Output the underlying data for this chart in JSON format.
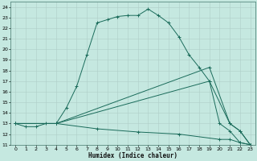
{
  "xlabel": "Humidex (Indice chaleur)",
  "xlim": [
    -0.5,
    23.5
  ],
  "ylim": [
    11,
    24.5
  ],
  "yticks": [
    11,
    12,
    13,
    14,
    15,
    16,
    17,
    18,
    19,
    20,
    21,
    22,
    23,
    24
  ],
  "xticks": [
    0,
    1,
    2,
    3,
    4,
    5,
    6,
    7,
    8,
    9,
    10,
    11,
    12,
    13,
    14,
    15,
    16,
    17,
    18,
    19,
    20,
    21,
    22,
    23
  ],
  "bg_color": "#c5e8e0",
  "line_color": "#1a6b5a",
  "grid_color": "#aecec8",
  "lines": [
    {
      "x": [
        0,
        1,
        2,
        3,
        4,
        5,
        6,
        7,
        8,
        9,
        10,
        11,
        12,
        13,
        14,
        15,
        16,
        17,
        18,
        19,
        20,
        21,
        22,
        23
      ],
      "y": [
        13.0,
        12.7,
        12.7,
        13.0,
        13.0,
        14.5,
        16.5,
        19.5,
        22.5,
        22.8,
        23.1,
        23.2,
        23.2,
        23.8,
        23.2,
        22.5,
        21.2,
        19.5,
        18.3,
        17.0,
        13.0,
        12.3,
        11.2,
        11.0
      ]
    },
    {
      "x": [
        0,
        4,
        19,
        21,
        22,
        23
      ],
      "y": [
        13.0,
        13.0,
        18.3,
        13.0,
        12.3,
        11.0
      ]
    },
    {
      "x": [
        0,
        4,
        19,
        21,
        22,
        23
      ],
      "y": [
        13.0,
        13.0,
        17.0,
        13.0,
        12.3,
        11.0
      ]
    },
    {
      "x": [
        0,
        4,
        8,
        12,
        16,
        20,
        21,
        22,
        23
      ],
      "y": [
        13.0,
        13.0,
        12.5,
        12.2,
        12.0,
        11.5,
        11.5,
        11.2,
        11.0
      ]
    }
  ]
}
